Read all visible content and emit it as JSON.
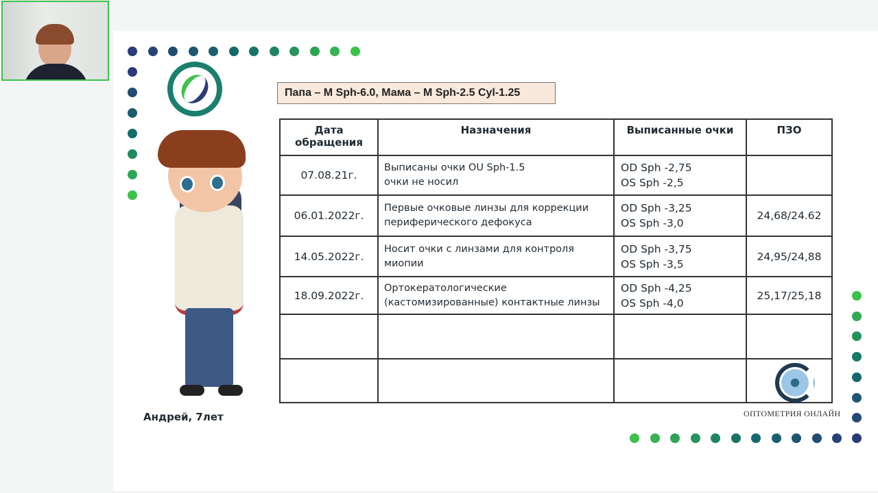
{
  "slide": {
    "banner": "Папа – M Sph-6.0, Мама – M Sph-2.5 Cyl-1.25",
    "headers": [
      "Дата обращения",
      "Назначения",
      "Выписанные очки",
      "ПЗО"
    ],
    "rows": [
      {
        "date": "07.08.21г.",
        "rx1": "Выписаны очки OU Sph-1.5",
        "rx2": "очки не носил",
        "od": "OD Sph -2,75",
        "os": "OS Sph -2,5",
        "pzo": ""
      },
      {
        "date": "06.01.2022г.",
        "rx1": "Первые очковые линзы для коррекции",
        "rx2": "периферического дефокуса",
        "od": "OD Sph -3,25",
        "os": "OS Sph -3,0",
        "pzo": "24,68/24.62"
      },
      {
        "date": "14.05.2022г.",
        "rx1": "Носит очки с линзами для контроля",
        "rx2": "миопии",
        "od": "OD Sph -3,75",
        "os": "OS Sph -3,5",
        "pzo": "24,95/24,88"
      },
      {
        "date": "18.09.2022г.",
        "rx1": "Ортокератологические",
        "rx2": "(кастомизированные) контактные линзы",
        "od": "OD Sph -4,25",
        "os": "OS Sph -4,0",
        "pzo": "25,17/25,18"
      }
    ],
    "patient": "Андрей, 7лет",
    "brand": "ОПТОМЕТРИЯ ОНЛАЙН"
  },
  "colors": {
    "navy": "#2b3a78",
    "teal": "#136e6a",
    "green": "#3cc24a"
  }
}
